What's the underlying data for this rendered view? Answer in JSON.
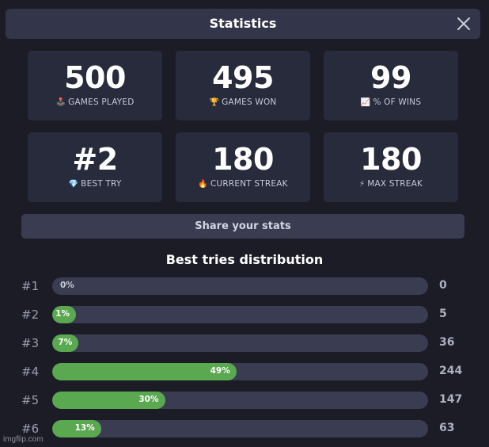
{
  "header": {
    "title": "Statistics",
    "close_icon": "close-icon"
  },
  "stats": [
    {
      "value": "500",
      "emoji": "🕹️",
      "label": "GAMES PLAYED",
      "icon": "joystick-icon"
    },
    {
      "value": "495",
      "emoji": "🏆",
      "label": "GAMES WON",
      "icon": "trophy-icon"
    },
    {
      "value": "99",
      "emoji": "📈",
      "label": "% OF WINS",
      "icon": "chart-increasing-icon"
    },
    {
      "value": "#2",
      "emoji": "💎",
      "label": "BEST TRY",
      "icon": "gem-icon"
    },
    {
      "value": "180",
      "emoji": "🔥",
      "label": "CURRENT STREAK",
      "icon": "fire-icon"
    },
    {
      "value": "180",
      "emoji": "⚡",
      "label": "MAX STREAK",
      "icon": "lightning-icon"
    }
  ],
  "share_label": "Share your stats",
  "distribution": {
    "title": "Best tries distribution",
    "rows": [
      {
        "label": "#1",
        "percent": 0,
        "percent_text": "0%",
        "count": "0"
      },
      {
        "label": "#2",
        "percent": 1,
        "percent_text": "1%",
        "count": "5"
      },
      {
        "label": "#3",
        "percent": 7,
        "percent_text": "7%",
        "count": "36"
      },
      {
        "label": "#4",
        "percent": 49,
        "percent_text": "49%",
        "count": "244"
      },
      {
        "label": "#5",
        "percent": 30,
        "percent_text": "30%",
        "count": "147"
      },
      {
        "label": "#6",
        "percent": 13,
        "percent_text": "13%",
        "count": "63"
      }
    ]
  },
  "watermark": "imgflip.com",
  "colors": {
    "background": "#1b1c25",
    "card": "#282b3c",
    "header": "#33364a",
    "bar_track": "#3a3d51",
    "bar_fill": "#5aa84f"
  }
}
